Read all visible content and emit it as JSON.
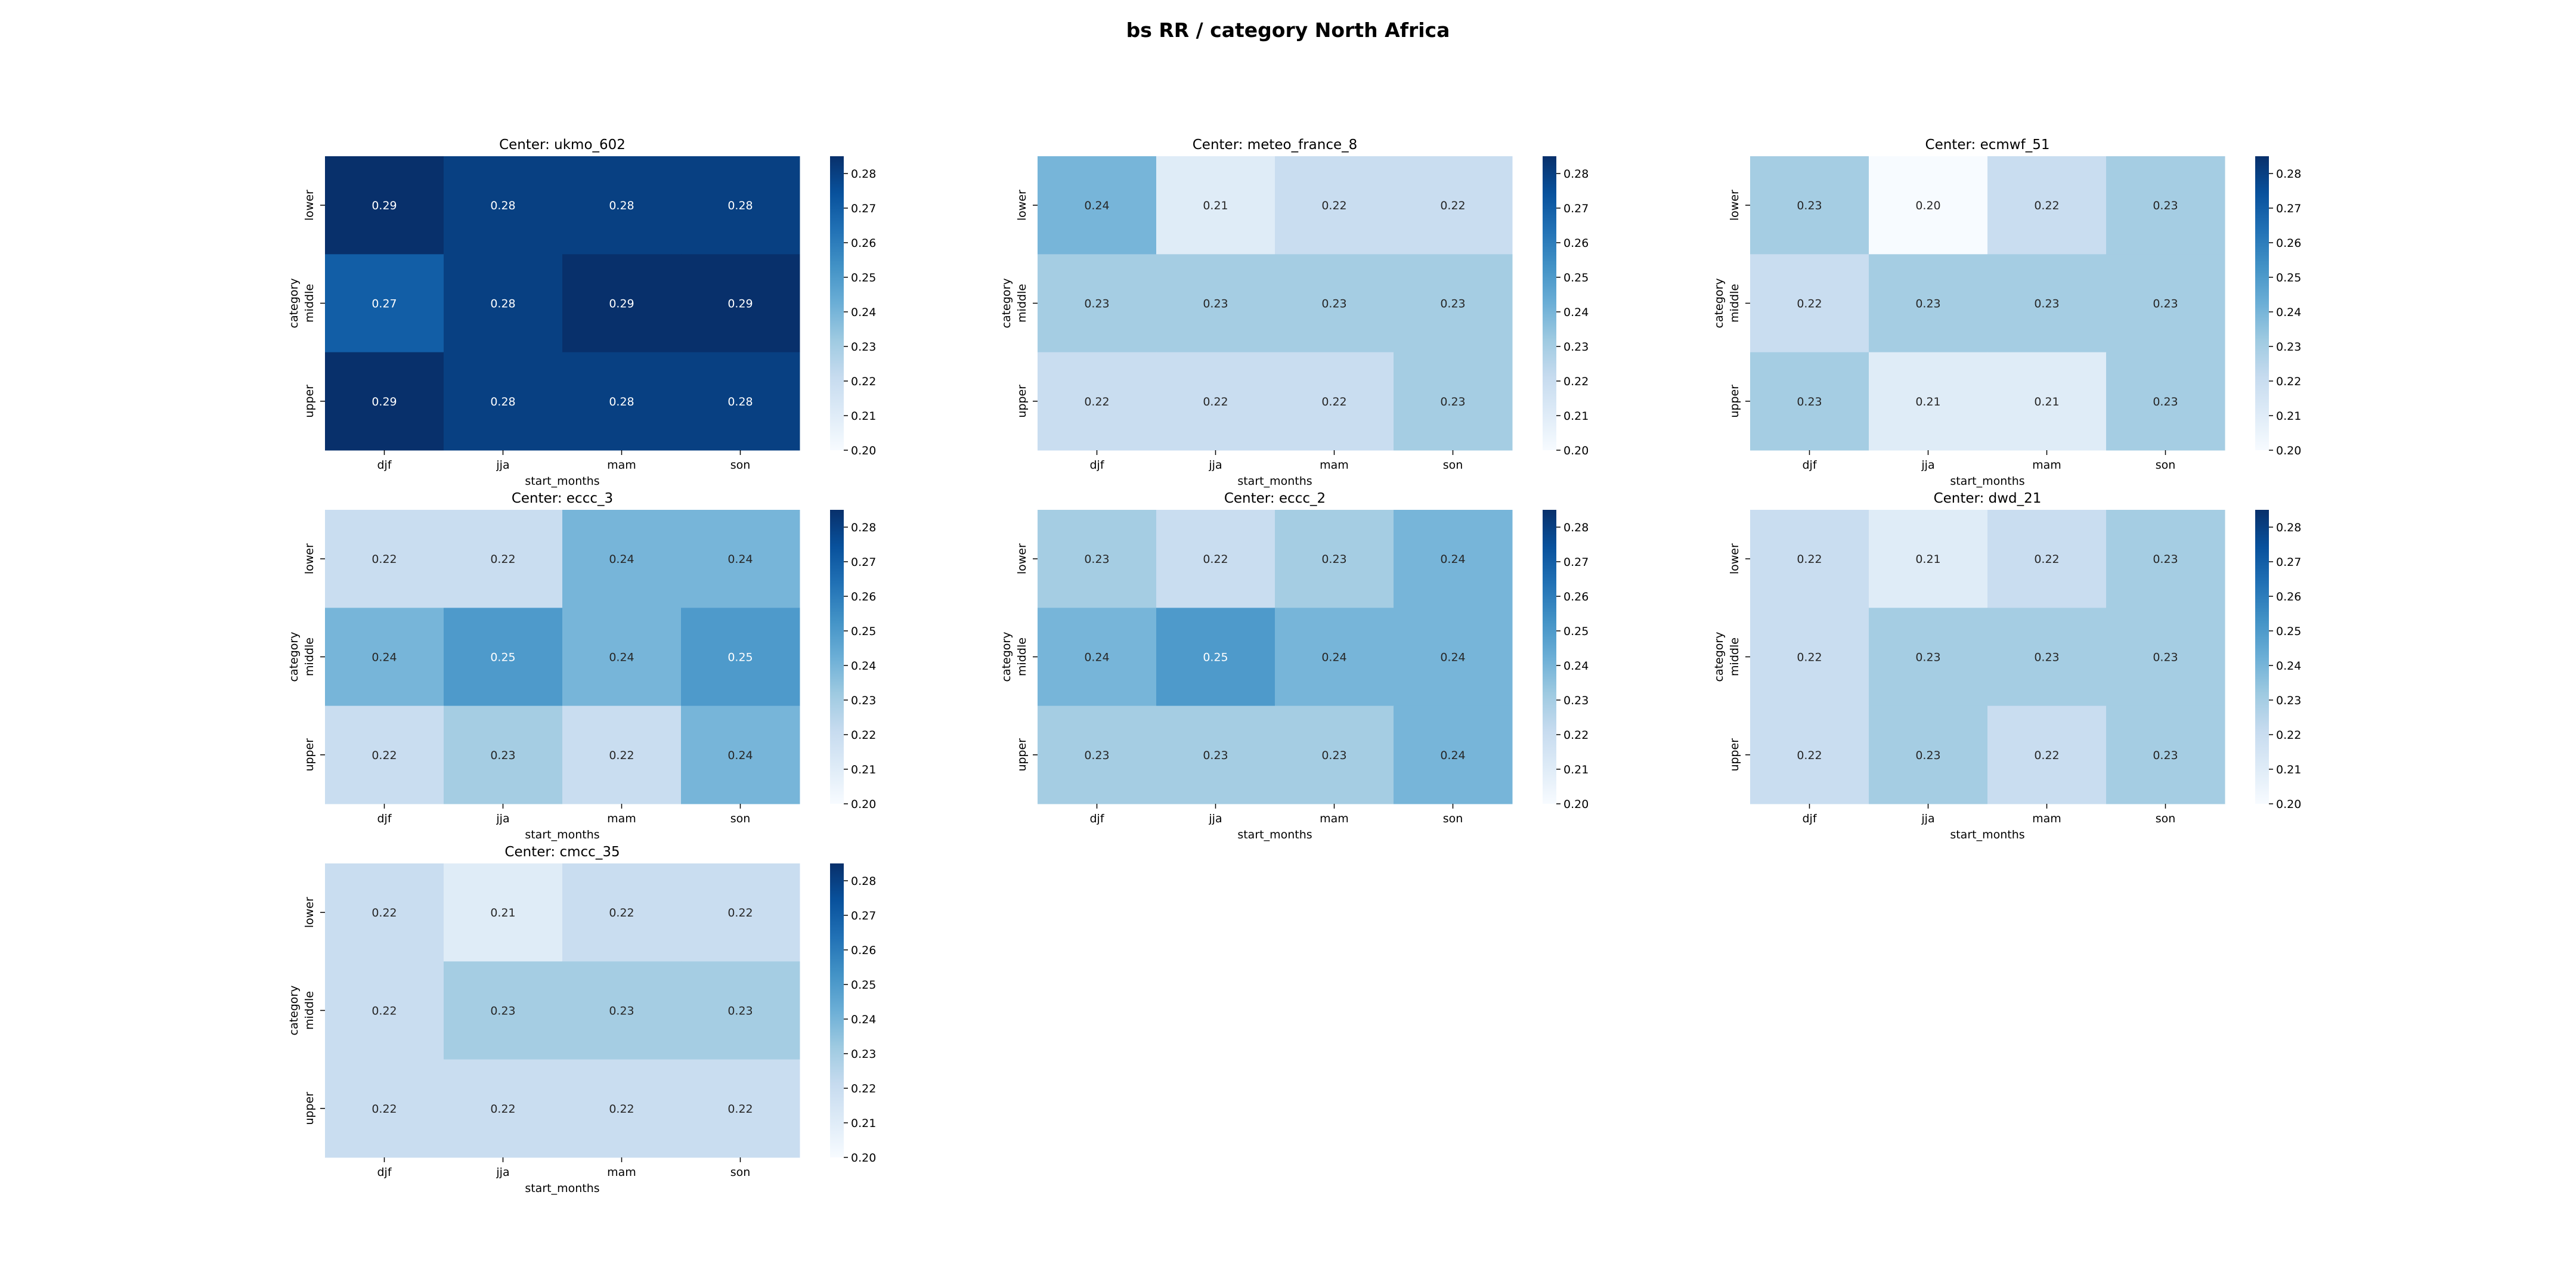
{
  "figure": {
    "title": "bs RR / category North Africa"
  },
  "colormap": {
    "name": "Blues",
    "low": "#f7fbff",
    "high": "#08306b"
  },
  "chart_data": [
    {
      "type": "heatmap",
      "title": "Center: ukmo_602",
      "xlabel": "start_months",
      "ylabel": "category",
      "x_categories": [
        "djf",
        "jja",
        "mam",
        "son"
      ],
      "y_categories": [
        "lower",
        "middle",
        "upper"
      ],
      "values": [
        [
          0.29,
          0.28,
          0.28,
          0.28
        ],
        [
          0.27,
          0.28,
          0.29,
          0.29
        ],
        [
          0.29,
          0.28,
          0.28,
          0.28
        ]
      ],
      "colorbar": {
        "vmin": 0.2,
        "vmax": 0.285,
        "ticks": [
          "0.20",
          "0.21",
          "0.22",
          "0.23",
          "0.24",
          "0.25",
          "0.26",
          "0.27",
          "0.28"
        ]
      }
    },
    {
      "type": "heatmap",
      "title": "Center: meteo_france_8",
      "xlabel": "start_months",
      "ylabel": "category",
      "x_categories": [
        "djf",
        "jja",
        "mam",
        "son"
      ],
      "y_categories": [
        "lower",
        "middle",
        "upper"
      ],
      "values": [
        [
          0.24,
          0.21,
          0.22,
          0.22
        ],
        [
          0.23,
          0.23,
          0.23,
          0.23
        ],
        [
          0.22,
          0.22,
          0.22,
          0.23
        ]
      ],
      "colorbar": {
        "vmin": 0.2,
        "vmax": 0.285,
        "ticks": [
          "0.20",
          "0.21",
          "0.22",
          "0.23",
          "0.24",
          "0.25",
          "0.26",
          "0.27",
          "0.28"
        ]
      }
    },
    {
      "type": "heatmap",
      "title": "Center: ecmwf_51",
      "xlabel": "start_months",
      "ylabel": "category",
      "x_categories": [
        "djf",
        "jja",
        "mam",
        "son"
      ],
      "y_categories": [
        "lower",
        "middle",
        "upper"
      ],
      "values": [
        [
          0.23,
          0.2,
          0.22,
          0.23
        ],
        [
          0.22,
          0.23,
          0.23,
          0.23
        ],
        [
          0.23,
          0.21,
          0.21,
          0.23
        ]
      ],
      "colorbar": {
        "vmin": 0.2,
        "vmax": 0.285,
        "ticks": [
          "0.20",
          "0.21",
          "0.22",
          "0.23",
          "0.24",
          "0.25",
          "0.26",
          "0.27",
          "0.28"
        ]
      }
    },
    {
      "type": "heatmap",
      "title": "Center: eccc_3",
      "xlabel": "start_months",
      "ylabel": "category",
      "x_categories": [
        "djf",
        "jja",
        "mam",
        "son"
      ],
      "y_categories": [
        "lower",
        "middle",
        "upper"
      ],
      "values": [
        [
          0.22,
          0.22,
          0.24,
          0.24
        ],
        [
          0.24,
          0.25,
          0.24,
          0.25
        ],
        [
          0.22,
          0.23,
          0.22,
          0.24
        ]
      ],
      "colorbar": {
        "vmin": 0.2,
        "vmax": 0.285,
        "ticks": [
          "0.20",
          "0.21",
          "0.22",
          "0.23",
          "0.24",
          "0.25",
          "0.26",
          "0.27",
          "0.28"
        ]
      }
    },
    {
      "type": "heatmap",
      "title": "Center: eccc_2",
      "xlabel": "start_months",
      "ylabel": "category",
      "x_categories": [
        "djf",
        "jja",
        "mam",
        "son"
      ],
      "y_categories": [
        "lower",
        "middle",
        "upper"
      ],
      "values": [
        [
          0.23,
          0.22,
          0.23,
          0.24
        ],
        [
          0.24,
          0.25,
          0.24,
          0.24
        ],
        [
          0.23,
          0.23,
          0.23,
          0.24
        ]
      ],
      "colorbar": {
        "vmin": 0.2,
        "vmax": 0.285,
        "ticks": [
          "0.20",
          "0.21",
          "0.22",
          "0.23",
          "0.24",
          "0.25",
          "0.26",
          "0.27",
          "0.28"
        ]
      }
    },
    {
      "type": "heatmap",
      "title": "Center: dwd_21",
      "xlabel": "start_months",
      "ylabel": "category",
      "x_categories": [
        "djf",
        "jja",
        "mam",
        "son"
      ],
      "y_categories": [
        "lower",
        "middle",
        "upper"
      ],
      "values": [
        [
          0.22,
          0.21,
          0.22,
          0.23
        ],
        [
          0.22,
          0.23,
          0.23,
          0.23
        ],
        [
          0.22,
          0.23,
          0.22,
          0.23
        ]
      ],
      "colorbar": {
        "vmin": 0.2,
        "vmax": 0.285,
        "ticks": [
          "0.20",
          "0.21",
          "0.22",
          "0.23",
          "0.24",
          "0.25",
          "0.26",
          "0.27",
          "0.28"
        ]
      }
    },
    {
      "type": "heatmap",
      "title": "Center: cmcc_35",
      "xlabel": "start_months",
      "ylabel": "category",
      "x_categories": [
        "djf",
        "jja",
        "mam",
        "son"
      ],
      "y_categories": [
        "lower",
        "middle",
        "upper"
      ],
      "values": [
        [
          0.22,
          0.21,
          0.22,
          0.22
        ],
        [
          0.22,
          0.23,
          0.23,
          0.23
        ],
        [
          0.22,
          0.22,
          0.22,
          0.22
        ]
      ],
      "colorbar": {
        "vmin": 0.2,
        "vmax": 0.285,
        "ticks": [
          "0.20",
          "0.21",
          "0.22",
          "0.23",
          "0.24",
          "0.25",
          "0.26",
          "0.27",
          "0.28"
        ]
      }
    }
  ]
}
